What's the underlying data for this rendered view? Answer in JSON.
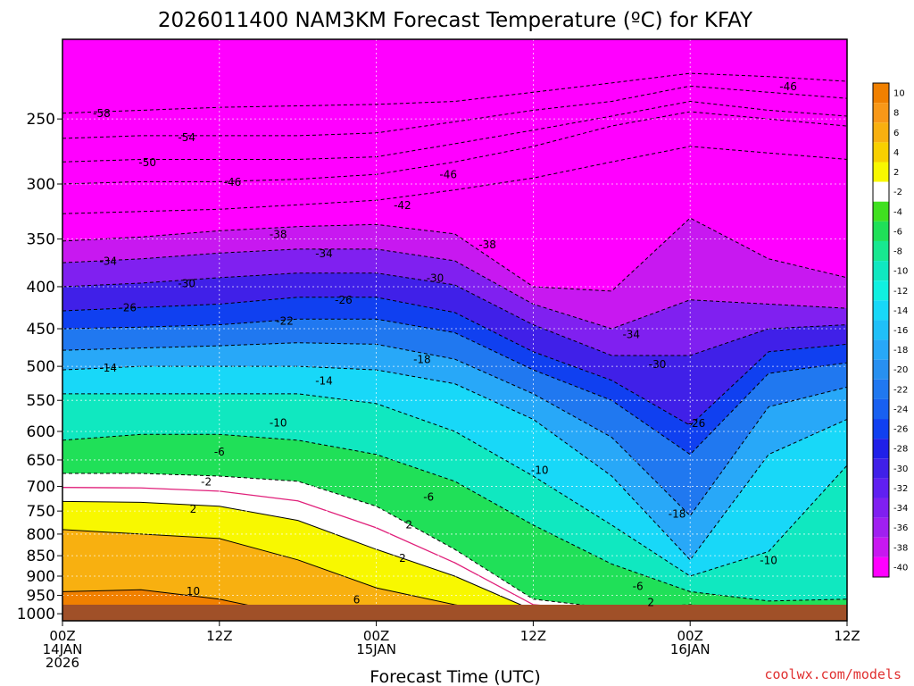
{
  "chart_data": {
    "type": "heatmap",
    "title": "2026011400 NAM3KM Forecast Temperature (ºC) for KFAY",
    "xlabel": "Forecast Time (UTC)",
    "ylabel": "",
    "credit": "coolwx.com/models",
    "x_ticks": [
      {
        "hour": 0,
        "lines": [
          "00Z",
          "14JAN",
          "2026"
        ]
      },
      {
        "hour": 12,
        "lines": [
          "12Z"
        ]
      },
      {
        "hour": 24,
        "lines": [
          "00Z",
          "15JAN"
        ]
      },
      {
        "hour": 36,
        "lines": [
          "12Z"
        ]
      },
      {
        "hour": 48,
        "lines": [
          "00Z",
          "16JAN"
        ]
      },
      {
        "hour": 60,
        "lines": [
          "12Z"
        ]
      }
    ],
    "xlim": [
      0,
      60
    ],
    "y_ticks": [
      250,
      300,
      350,
      400,
      450,
      500,
      550,
      600,
      650,
      700,
      750,
      800,
      850,
      900,
      950,
      1000
    ],
    "ylim": [
      1020,
      200
    ],
    "y_scale": "log-pressure",
    "grid": true,
    "colorbar_levels": [
      10,
      8,
      6,
      4,
      2,
      -2,
      -4,
      -6,
      -8,
      -10,
      -12,
      -14,
      -16,
      -18,
      -20,
      -22,
      -24,
      -26,
      -28,
      -30,
      -32,
      -34,
      -36,
      -38,
      -40
    ],
    "colorbar_colors": [
      "#f08000",
      "#f89818",
      "#f8b010",
      "#f8d000",
      "#f8f800",
      "#ffffff",
      "#40e020",
      "#20e058",
      "#18e890",
      "#10e8c0",
      "#10f0e0",
      "#18d8f8",
      "#20c0f8",
      "#28a8f8",
      "#2890f0",
      "#2078f0",
      "#1860f0",
      "#1040f0",
      "#2020e8",
      "#4020e8",
      "#6020f0",
      "#8020f0",
      "#a020f0",
      "#c818f0",
      "#ff00ff"
    ],
    "hours": [
      0,
      6,
      12,
      18,
      24,
      30,
      36,
      42,
      48,
      54,
      60
    ],
    "isotherms": [
      {
        "temp": -58,
        "pressure": [
          246,
          244,
          242,
          241,
          240,
          238,
          232,
          226,
          220,
          222,
          225
        ]
      },
      {
        "temp": -54,
        "pressure": [
          264,
          262,
          262,
          262,
          260,
          252,
          244,
          238,
          228,
          232,
          236
        ]
      },
      {
        "temp": -50,
        "pressure": [
          282,
          280,
          280,
          280,
          278,
          268,
          258,
          248,
          238,
          244,
          248
        ]
      },
      {
        "temp": -46,
        "pressure": [
          300,
          298,
          298,
          296,
          292,
          282,
          270,
          255,
          245,
          250,
          255
        ]
      },
      {
        "temp": -42,
        "pressure": [
          326,
          324,
          322,
          318,
          314,
          305,
          295,
          282,
          270,
          275,
          280
        ]
      },
      {
        "temp": -38,
        "pressure": [
          352,
          348,
          342,
          338,
          336,
          345,
          400,
          405,
          330,
          370,
          390
        ]
      },
      {
        "temp": -34,
        "pressure": [
          374,
          370,
          364,
          360,
          360,
          372,
          420,
          450,
          415,
          420,
          425
        ]
      },
      {
        "temp": -30,
        "pressure": [
          400,
          396,
          390,
          385,
          385,
          398,
          445,
          485,
          485,
          450,
          445
        ]
      },
      {
        "temp": -26,
        "pressure": [
          428,
          424,
          420,
          412,
          412,
          430,
          480,
          520,
          590,
          480,
          470
        ]
      },
      {
        "temp": -22,
        "pressure": [
          450,
          448,
          445,
          438,
          438,
          455,
          505,
          550,
          640,
          510,
          495
        ]
      },
      {
        "temp": -18,
        "pressure": [
          478,
          475,
          472,
          468,
          470,
          490,
          540,
          610,
          760,
          560,
          530
        ]
      },
      {
        "temp": -14,
        "pressure": [
          505,
          500,
          500,
          500,
          505,
          525,
          580,
          680,
          860,
          640,
          580
        ]
      },
      {
        "temp": -10,
        "pressure": [
          540,
          540,
          540,
          540,
          555,
          600,
          680,
          780,
          900,
          840,
          660
        ]
      },
      {
        "temp": -6,
        "pressure": [
          615,
          605,
          605,
          615,
          640,
          690,
          780,
          870,
          940,
          965,
          960
        ]
      },
      {
        "temp": -2,
        "pressure": [
          675,
          675,
          680,
          690,
          740,
          835,
          960,
          985,
          975,
          995,
          1000
        ]
      },
      {
        "temp": 2,
        "pressure": [
          730,
          732,
          740,
          770,
          835,
          900,
          990,
          1005,
          995,
          1005,
          1010
        ]
      },
      {
        "temp": 6,
        "pressure": [
          790,
          800,
          810,
          860,
          930,
          975,
          1010,
          1010,
          1010,
          1010,
          1010
        ]
      },
      {
        "temp": 10,
        "pressure": [
          940,
          935,
          960,
          1005,
          1010,
          1010,
          1010,
          1010,
          1010,
          1010,
          1010
        ]
      }
    ],
    "contour_labels": [
      {
        "text": "-58",
        "hour": 3,
        "pressure": 246
      },
      {
        "text": "-54",
        "hour": 9.5,
        "pressure": 263
      },
      {
        "text": "-50",
        "hour": 6.5,
        "pressure": 282
      },
      {
        "text": "-46",
        "hour": 13,
        "pressure": 298
      },
      {
        "text": "-46",
        "hour": 29.5,
        "pressure": 292
      },
      {
        "text": "-46",
        "hour": 55.5,
        "pressure": 228
      },
      {
        "text": "-42",
        "hour": 26,
        "pressure": 318
      },
      {
        "text": "-38",
        "hour": 16.5,
        "pressure": 345
      },
      {
        "text": "-38",
        "hour": 32.5,
        "pressure": 355
      },
      {
        "text": "-34",
        "hour": 3.5,
        "pressure": 372
      },
      {
        "text": "-34",
        "hour": 20,
        "pressure": 364
      },
      {
        "text": "-34",
        "hour": 43.5,
        "pressure": 457
      },
      {
        "text": "-30",
        "hour": 9.5,
        "pressure": 396
      },
      {
        "text": "-30",
        "hour": 28.5,
        "pressure": 390
      },
      {
        "text": "-30",
        "hour": 45.5,
        "pressure": 497
      },
      {
        "text": "-26",
        "hour": 5,
        "pressure": 424
      },
      {
        "text": "-26",
        "hour": 21.5,
        "pressure": 415
      },
      {
        "text": "-26",
        "hour": 48.5,
        "pressure": 586
      },
      {
        "text": "-22",
        "hour": 17,
        "pressure": 440
      },
      {
        "text": "-18",
        "hour": 27.5,
        "pressure": 490
      },
      {
        "text": "-18",
        "hour": 47,
        "pressure": 755
      },
      {
        "text": "-14",
        "hour": 3.5,
        "pressure": 502
      },
      {
        "text": "-14",
        "hour": 20,
        "pressure": 520
      },
      {
        "text": "-10",
        "hour": 16.5,
        "pressure": 585
      },
      {
        "text": "-10",
        "hour": 36.5,
        "pressure": 668
      },
      {
        "text": "-10",
        "hour": 54,
        "pressure": 860
      },
      {
        "text": "-6",
        "hour": 12,
        "pressure": 635
      },
      {
        "text": "-6",
        "hour": 28,
        "pressure": 720
      },
      {
        "text": "-6",
        "hour": 44,
        "pressure": 925
      },
      {
        "text": "-2",
        "hour": 11,
        "pressure": 690
      },
      {
        "text": "2",
        "hour": 10,
        "pressure": 745
      },
      {
        "text": "2",
        "hour": 26.5,
        "pressure": 778
      },
      {
        "text": "2",
        "hour": 26,
        "pressure": 855
      },
      {
        "text": "2",
        "hour": 45,
        "pressure": 968
      },
      {
        "text": "10",
        "hour": 10,
        "pressure": 938
      },
      {
        "text": "6",
        "hour": 22.5,
        "pressure": 960
      }
    ]
  }
}
